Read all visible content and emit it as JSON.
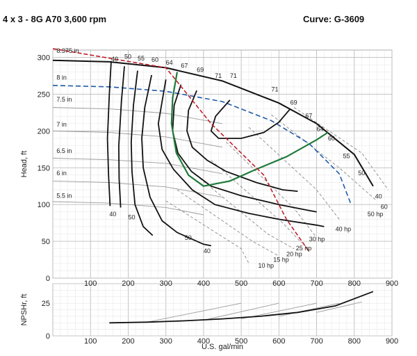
{
  "header": {
    "left": "4 x 3 - 8G  A70  3,600 rpm",
    "right": "Curve: G-3609"
  },
  "colors": {
    "head_curve": "#111111",
    "efficiency_bep": "#1f7a3a",
    "diameter_line": "#1e5aa8",
    "min_flow_line": "#c0202a",
    "power_line": "#888888",
    "grid": "#c8c8c8"
  },
  "chart_data": [
    {
      "type": "line",
      "name": "head-capacity",
      "xlabel": "",
      "ylabel": "Head, ft",
      "xlim": [
        0,
        900
      ],
      "ylim": [
        0,
        310
      ],
      "x_ticks": [
        100,
        200,
        300,
        400,
        500,
        600,
        700,
        800,
        900
      ],
      "y_ticks": [
        0,
        50,
        100,
        150,
        200,
        250,
        300
      ],
      "grid": true,
      "impeller_curves": [
        {
          "label": "8.375 in",
          "points": [
            [
              0,
              296
            ],
            [
              150,
              294
            ],
            [
              300,
              286
            ],
            [
              450,
              268
            ],
            [
              600,
              238
            ],
            [
              700,
              210
            ],
            [
              800,
              168
            ],
            [
              850,
              125
            ]
          ]
        },
        {
          "label": "8 in",
          "dashed": true,
          "points": [
            [
              0,
              262
            ],
            [
              150,
              260
            ],
            [
              300,
              254
            ],
            [
              450,
              240
            ],
            [
              580,
              214
            ],
            [
              680,
              183
            ],
            [
              760,
              142
            ],
            [
              790,
              102
            ]
          ]
        },
        {
          "label": "7.5 in",
          "points": [
            [
              0,
              232
            ],
            [
              150,
              230
            ],
            [
              300,
              224
            ],
            [
              450,
              210
            ]
          ]
        },
        {
          "label": "7 in",
          "points": [
            [
              0,
              200
            ],
            [
              150,
              198
            ],
            [
              300,
              192
            ],
            [
              450,
              178
            ]
          ]
        },
        {
          "label": "6.5 in",
          "points": [
            [
              0,
              163
            ],
            [
              150,
              161
            ],
            [
              300,
              156
            ],
            [
              450,
              142
            ]
          ]
        },
        {
          "label": "6 in",
          "points": [
            [
              0,
              132
            ],
            [
              150,
              130
            ],
            [
              300,
              124
            ],
            [
              450,
              110
            ]
          ]
        },
        {
          "label": "5.5 in",
          "points": [
            [
              0,
              104
            ],
            [
              150,
              102
            ],
            [
              300,
              96
            ],
            [
              400,
              86
            ]
          ]
        }
      ],
      "efficiency_contours": [
        {
          "label": "40",
          "points": [
            [
              155,
              295
            ],
            [
              150,
              250
            ],
            [
              145,
              190
            ],
            [
              148,
              140
            ],
            [
              152,
              98
            ]
          ]
        },
        {
          "label": "50",
          "points": [
            [
              190,
              288
            ],
            [
              182,
              240
            ],
            [
              175,
              180
            ],
            [
              176,
              135
            ],
            [
              180,
              96
            ]
          ]
        },
        {
          "label": "55",
          "points": [
            [
              225,
              282
            ],
            [
              214,
              235
            ],
            [
              208,
              185
            ],
            [
              210,
              145
            ],
            [
              218,
              100
            ],
            [
              240,
              70
            ],
            [
              265,
              58
            ]
          ]
        },
        {
          "label": "60",
          "points": [
            [
              262,
              276
            ],
            [
              244,
              232
            ],
            [
              236,
              190
            ],
            [
              240,
              150
            ],
            [
              258,
              110
            ],
            [
              290,
              78
            ],
            [
              330,
              62
            ],
            [
              400,
              46
            ],
            [
              420,
              44
            ]
          ]
        },
        {
          "label": "64",
          "points": [
            [
              300,
              270
            ],
            [
              290,
              240
            ],
            [
              280,
              210
            ],
            [
              290,
              175
            ],
            [
              320,
              148
            ],
            [
              370,
              120
            ],
            [
              430,
              100
            ],
            [
              520,
              88
            ],
            [
              600,
              80
            ],
            [
              700,
              72
            ],
            [
              720,
              70
            ]
          ]
        },
        {
          "label": "67",
          "points": [
            [
              340,
              263
            ],
            [
              322,
              235
            ],
            [
              318,
              200
            ],
            [
              332,
              170
            ],
            [
              368,
              145
            ],
            [
              420,
              125
            ],
            [
              500,
              112
            ],
            [
              600,
              100
            ],
            [
              680,
              92
            ],
            [
              700,
              90
            ]
          ]
        },
        {
          "label": "69",
          "points": [
            [
              382,
              255
            ],
            [
              360,
              228
            ],
            [
              356,
              200
            ],
            [
              370,
              178
            ],
            [
              410,
              160
            ],
            [
              460,
              145
            ],
            [
              540,
              130
            ],
            [
              610,
              120
            ],
            [
              650,
              118
            ]
          ]
        },
        {
          "label": "71",
          "points": [
            [
              470,
              242
            ],
            [
              432,
              220
            ],
            [
              420,
              200
            ],
            [
              440,
              190
            ],
            [
              500,
              190
            ],
            [
              560,
              198
            ],
            [
              600,
              212
            ],
            [
              630,
              230
            ]
          ]
        }
      ],
      "bep_curve": {
        "label": "64",
        "points": [
          [
            330,
            280
          ],
          [
            318,
            245
          ],
          [
            315,
            210
          ],
          [
            328,
            170
          ],
          [
            360,
            140
          ],
          [
            400,
            125
          ],
          [
            470,
            132
          ],
          [
            540,
            148
          ],
          [
            620,
            165
          ],
          [
            700,
            188
          ],
          [
            730,
            198
          ]
        ]
      },
      "min_flow_line": {
        "points": [
          [
            0,
            312
          ],
          [
            300,
            286
          ],
          [
            420,
            210
          ],
          [
            560,
            140
          ],
          [
            620,
            80
          ],
          [
            680,
            36
          ]
        ]
      },
      "power_lines": [
        {
          "label": "10 hp",
          "points": [
            [
              300,
              105
            ],
            [
              500,
              40
            ],
            [
              520,
              20
            ]
          ]
        },
        {
          "label": "15 hp",
          "points": [
            [
              330,
              120
            ],
            [
              530,
              50
            ],
            [
              600,
              30
            ]
          ]
        },
        {
          "label": "20 hp",
          "points": [
            [
              380,
              140
            ],
            [
              570,
              60
            ],
            [
              640,
              40
            ]
          ]
        },
        {
          "label": "25 hp",
          "points": [
            [
              420,
              160
            ],
            [
              610,
              75
            ],
            [
              660,
              48
            ]
          ]
        },
        {
          "label": "30 hp",
          "points": [
            [
              460,
              185
            ],
            [
              640,
              95
            ],
            [
              700,
              55
            ]
          ]
        },
        {
          "label": "40 hp",
          "points": [
            [
              520,
              205
            ],
            [
              700,
              120
            ],
            [
              760,
              80
            ]
          ]
        },
        {
          "label": "50 hp",
          "points": [
            [
              580,
              222
            ],
            [
              760,
              150
            ],
            [
              860,
              105
            ]
          ]
        },
        {
          "label": "60",
          "points": [
            [
              640,
              232
            ],
            [
              820,
              170
            ],
            [
              890,
              120
            ]
          ]
        }
      ],
      "labels": [
        {
          "text": "40",
          "x": 155,
          "y": 295
        },
        {
          "text": "50",
          "x": 190,
          "y": 298
        },
        {
          "text": "55",
          "x": 225,
          "y": 296
        },
        {
          "text": "60",
          "x": 262,
          "y": 294
        },
        {
          "text": "64",
          "x": 300,
          "y": 290
        },
        {
          "text": "67",
          "x": 340,
          "y": 286
        },
        {
          "text": "69",
          "x": 382,
          "y": 280
        },
        {
          "text": "71",
          "x": 430,
          "y": 272
        },
        {
          "text": "71",
          "x": 470,
          "y": 272
        },
        {
          "text": "71",
          "x": 580,
          "y": 254
        },
        {
          "text": "69",
          "x": 630,
          "y": 236
        },
        {
          "text": "67",
          "x": 670,
          "y": 218
        },
        {
          "text": "64",
          "x": 700,
          "y": 200
        },
        {
          "text": "60",
          "x": 730,
          "y": 187
        },
        {
          "text": "55",
          "x": 770,
          "y": 163
        },
        {
          "text": "50",
          "x": 810,
          "y": 140
        },
        {
          "text": "40",
          "x": 855,
          "y": 108
        },
        {
          "text": "40",
          "x": 150,
          "y": 84
        },
        {
          "text": "50",
          "x": 200,
          "y": 80
        },
        {
          "text": "50",
          "x": 350,
          "y": 52
        },
        {
          "text": "40",
          "x": 400,
          "y": 34
        },
        {
          "text": "10 hp",
          "x": 545,
          "y": 14
        },
        {
          "text": "15 hp",
          "x": 585,
          "y": 22
        },
        {
          "text": "20 hp",
          "x": 620,
          "y": 30
        },
        {
          "text": "25 hp",
          "x": 645,
          "y": 38
        },
        {
          "text": "30 hp",
          "x": 680,
          "y": 50
        },
        {
          "text": "40 hp",
          "x": 750,
          "y": 64
        },
        {
          "text": "50 hp",
          "x": 835,
          "y": 84
        },
        {
          "text": "60",
          "x": 870,
          "y": 94
        },
        {
          "text": "8.375 in",
          "x": 10,
          "y": 306
        },
        {
          "text": "8 in",
          "x": 10,
          "y": 270
        },
        {
          "text": "7.5 in",
          "x": 10,
          "y": 240
        },
        {
          "text": "7 in",
          "x": 10,
          "y": 206
        },
        {
          "text": "6.5 in",
          "x": 10,
          "y": 170
        },
        {
          "text": "6 in",
          "x": 10,
          "y": 140
        },
        {
          "text": "5.5 in",
          "x": 10,
          "y": 109
        }
      ]
    },
    {
      "type": "line",
      "name": "npsh",
      "xlabel": "U.S. gal/min",
      "ylabel": "NPSHr, ft",
      "xlim": [
        0,
        900
      ],
      "ylim": [
        0,
        40
      ],
      "x_ticks": [
        100,
        200,
        300,
        400,
        500,
        600,
        700,
        800,
        900
      ],
      "y_ticks": [
        0,
        25
      ],
      "grid": true,
      "series": [
        {
          "points": [
            [
              150,
              10
            ],
            [
              250,
              10.5
            ],
            [
              350,
              11.5
            ],
            [
              450,
              13
            ],
            [
              550,
              15
            ],
            [
              650,
              18
            ],
            [
              750,
              23
            ],
            [
              850,
              34
            ]
          ]
        }
      ],
      "thin_series": [
        {
          "points": [
            [
              250,
              10.5
            ],
            [
              500,
              25
            ]
          ]
        },
        {
          "points": [
            [
              400,
              12
            ],
            [
              600,
              25
            ]
          ]
        },
        {
          "points": [
            [
              500,
              13
            ],
            [
              700,
              25
            ]
          ]
        },
        {
          "points": [
            [
              600,
              15
            ],
            [
              760,
              25
            ]
          ]
        },
        {
          "points": [
            [
              700,
              18
            ],
            [
              820,
              26
            ]
          ]
        }
      ]
    }
  ]
}
